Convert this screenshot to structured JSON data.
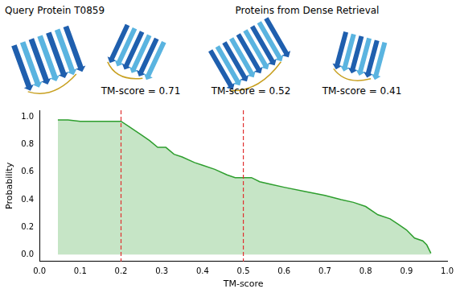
{
  "header": {
    "query_label": "Query Protein T0859",
    "retrieval_label": "Proteins from Dense Retrieval",
    "retrieved": [
      "TM-score = 0.71",
      "TM-score = 0.52",
      "TM-score = 0.41"
    ]
  },
  "chart_data": {
    "type": "line",
    "x_label": "TM-score",
    "y_label": "Probability",
    "color": "#2e9e2e",
    "marker": "none",
    "grid": false,
    "x": [
      0.045,
      0.07,
      0.1,
      0.2,
      0.22,
      0.25,
      0.27,
      0.29,
      0.31,
      0.33,
      0.35,
      0.38,
      0.4,
      0.43,
      0.46,
      0.48,
      0.5,
      0.52,
      0.54,
      0.57,
      0.6,
      0.65,
      0.7,
      0.74,
      0.77,
      0.8,
      0.83,
      0.86,
      0.88,
      0.9,
      0.92,
      0.94,
      0.95,
      0.96
    ],
    "values": [
      0.98,
      0.98,
      0.97,
      0.97,
      0.93,
      0.87,
      0.83,
      0.78,
      0.78,
      0.73,
      0.71,
      0.67,
      0.65,
      0.62,
      0.58,
      0.56,
      0.56,
      0.56,
      0.53,
      0.51,
      0.49,
      0.46,
      0.43,
      0.4,
      0.38,
      0.35,
      0.29,
      0.26,
      0.22,
      0.18,
      0.12,
      0.1,
      0.07,
      0.01
    ],
    "xlim": [
      0,
      1
    ],
    "xticks": [
      {
        "value": 0,
        "label": "0.0"
      },
      {
        "value": 0.1,
        "label": "0.1"
      },
      {
        "value": 0.2,
        "label": "0.2"
      },
      {
        "value": 0.3,
        "label": "0.3"
      },
      {
        "value": 0.4,
        "label": "0.4"
      },
      {
        "value": 0.5,
        "label": "0.5"
      },
      {
        "value": 0.6,
        "label": "0.6"
      },
      {
        "value": 0.7,
        "label": "0.7"
      },
      {
        "value": 0.8,
        "label": "0.8"
      },
      {
        "value": 0.9,
        "label": "0.9"
      },
      {
        "value": 1,
        "label": "1.0"
      }
    ],
    "ylim": [
      -0.05,
      1.05
    ],
    "yticks": [
      {
        "value": 0,
        "label": "0.0"
      },
      {
        "value": 0.2,
        "label": "0.2"
      },
      {
        "value": 0.4,
        "label": "0.4"
      },
      {
        "value": 0.6,
        "label": "0.6"
      },
      {
        "value": 0.8,
        "label": "0.8"
      },
      {
        "value": 1,
        "label": "1.0"
      }
    ],
    "vlines": [
      {
        "x": 0.2,
        "color": "#e03030",
        "line_style": "dashed"
      },
      {
        "x": 0.5,
        "color": "#e03030",
        "line_style": "dashed"
      }
    ]
  }
}
